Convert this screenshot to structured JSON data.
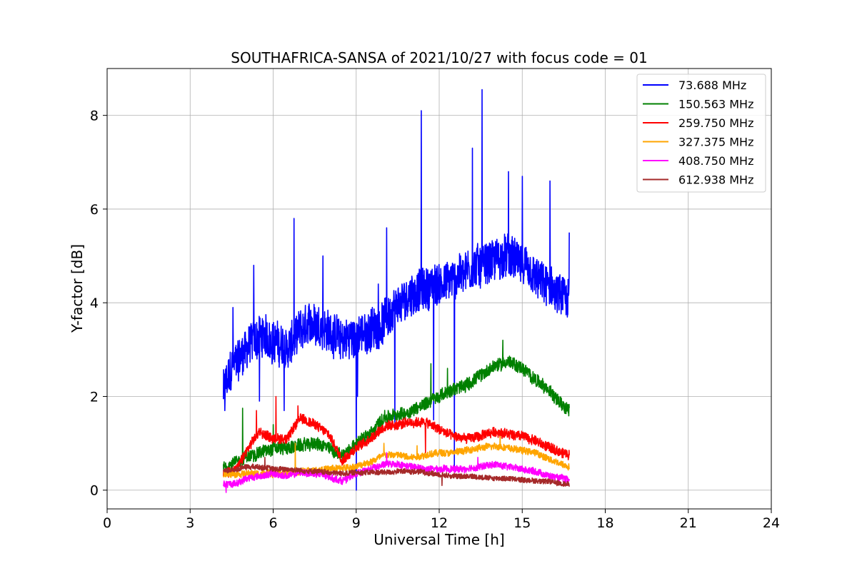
{
  "chart_data": {
    "type": "line",
    "title": "SOUTHAFRICA-SANSA of 2021/10/27 with focus code = 01",
    "xlabel": "Universal Time [h]",
    "ylabel": "Y-factor [dB]",
    "xlim": [
      0,
      24
    ],
    "ylim": [
      -0.4,
      9.0
    ],
    "xticks": [
      0,
      3,
      6,
      9,
      12,
      15,
      18,
      21,
      24
    ],
    "yticks": [
      0,
      2,
      4,
      6,
      8
    ],
    "grid": true,
    "legend_position": "top-right",
    "series": [
      {
        "name": " 73.688 MHz",
        "color": "#0000ff",
        "baseline": [
          [
            4.2,
            2.1
          ],
          [
            4.5,
            2.6
          ],
          [
            5.0,
            3.0
          ],
          [
            5.5,
            3.3
          ],
          [
            6.0,
            3.2
          ],
          [
            6.5,
            3.0
          ],
          [
            7.0,
            3.4
          ],
          [
            7.5,
            3.6
          ],
          [
            8.0,
            3.4
          ],
          [
            8.5,
            3.2
          ],
          [
            9.0,
            3.3
          ],
          [
            9.5,
            3.4
          ],
          [
            10.0,
            3.6
          ],
          [
            10.5,
            3.9
          ],
          [
            11.0,
            4.2
          ],
          [
            11.5,
            4.3
          ],
          [
            12.0,
            4.4
          ],
          [
            12.5,
            4.5
          ],
          [
            13.0,
            4.7
          ],
          [
            13.5,
            4.8
          ],
          [
            14.0,
            4.9
          ],
          [
            14.5,
            5.0
          ],
          [
            15.0,
            4.8
          ],
          [
            15.5,
            4.5
          ],
          [
            16.0,
            4.3
          ],
          [
            16.7,
            4.0
          ]
        ],
        "noise": 0.55,
        "spikes": [
          [
            4.25,
            1.7
          ],
          [
            4.55,
            3.9
          ],
          [
            5.3,
            4.8
          ],
          [
            5.5,
            1.9
          ],
          [
            6.4,
            1.7
          ],
          [
            6.75,
            5.8
          ],
          [
            7.8,
            5.0
          ],
          [
            9.0,
            0.0
          ],
          [
            9.05,
            2.0
          ],
          [
            9.8,
            4.4
          ],
          [
            10.1,
            5.6
          ],
          [
            10.4,
            1.4
          ],
          [
            11.35,
            8.1
          ],
          [
            11.8,
            1.5
          ],
          [
            12.55,
            0.4
          ],
          [
            13.2,
            7.3
          ],
          [
            13.55,
            8.55
          ],
          [
            14.5,
            6.8
          ],
          [
            15.0,
            6.7
          ],
          [
            16.0,
            6.6
          ],
          [
            16.7,
            5.5
          ]
        ]
      },
      {
        "name": "150.563 MHz",
        "color": "#008000",
        "baseline": [
          [
            4.2,
            0.5
          ],
          [
            4.5,
            0.55
          ],
          [
            5.0,
            0.7
          ],
          [
            5.5,
            0.8
          ],
          [
            6.0,
            0.9
          ],
          [
            6.5,
            0.9
          ],
          [
            7.0,
            0.95
          ],
          [
            7.5,
            1.0
          ],
          [
            8.0,
            0.9
          ],
          [
            8.5,
            0.75
          ],
          [
            9.0,
            1.0
          ],
          [
            9.5,
            1.2
          ],
          [
            10.0,
            1.55
          ],
          [
            10.5,
            1.6
          ],
          [
            11.0,
            1.7
          ],
          [
            11.5,
            1.85
          ],
          [
            12.0,
            2.0
          ],
          [
            12.5,
            2.15
          ],
          [
            13.0,
            2.25
          ],
          [
            13.5,
            2.45
          ],
          [
            14.0,
            2.65
          ],
          [
            14.5,
            2.75
          ],
          [
            15.0,
            2.6
          ],
          [
            15.5,
            2.35
          ],
          [
            16.0,
            2.1
          ],
          [
            16.7,
            1.7
          ]
        ],
        "noise": 0.17,
        "spikes": [
          [
            4.9,
            1.75
          ],
          [
            6.0,
            1.4
          ],
          [
            11.7,
            2.7
          ],
          [
            12.3,
            2.6
          ],
          [
            14.3,
            3.2
          ]
        ]
      },
      {
        "name": "259.750 MHz",
        "color": "#ff0000",
        "baseline": [
          [
            4.2,
            0.35
          ],
          [
            4.7,
            0.45
          ],
          [
            5.0,
            0.8
          ],
          [
            5.5,
            1.25
          ],
          [
            6.0,
            1.1
          ],
          [
            6.5,
            1.1
          ],
          [
            7.0,
            1.55
          ],
          [
            7.5,
            1.4
          ],
          [
            8.0,
            1.2
          ],
          [
            8.5,
            0.65
          ],
          [
            9.0,
            0.9
          ],
          [
            9.5,
            1.1
          ],
          [
            10.0,
            1.35
          ],
          [
            10.5,
            1.4
          ],
          [
            11.0,
            1.45
          ],
          [
            11.5,
            1.45
          ],
          [
            12.0,
            1.3
          ],
          [
            12.5,
            1.15
          ],
          [
            13.0,
            1.1
          ],
          [
            13.5,
            1.15
          ],
          [
            14.0,
            1.25
          ],
          [
            14.5,
            1.2
          ],
          [
            15.0,
            1.15
          ],
          [
            15.5,
            1.05
          ],
          [
            16.0,
            0.9
          ],
          [
            16.7,
            0.75
          ]
        ],
        "noise": 0.13,
        "spikes": [
          [
            5.4,
            1.7
          ],
          [
            6.1,
            2.0
          ],
          [
            6.9,
            1.8
          ],
          [
            11.5,
            0.8
          ]
        ]
      },
      {
        "name": "327.375 MHz",
        "color": "#ffa500",
        "baseline": [
          [
            4.2,
            0.35
          ],
          [
            5.0,
            0.35
          ],
          [
            6.0,
            0.35
          ],
          [
            7.0,
            0.4
          ],
          [
            8.0,
            0.45
          ],
          [
            9.0,
            0.5
          ],
          [
            9.5,
            0.6
          ],
          [
            10.0,
            0.75
          ],
          [
            10.5,
            0.75
          ],
          [
            11.0,
            0.7
          ],
          [
            11.5,
            0.75
          ],
          [
            12.0,
            0.8
          ],
          [
            12.5,
            0.8
          ],
          [
            13.0,
            0.85
          ],
          [
            13.5,
            0.9
          ],
          [
            14.0,
            0.95
          ],
          [
            14.5,
            0.9
          ],
          [
            15.0,
            0.85
          ],
          [
            15.5,
            0.8
          ],
          [
            16.0,
            0.65
          ],
          [
            16.7,
            0.5
          ]
        ],
        "noise": 0.09,
        "spikes": [
          [
            6.8,
            1.0
          ],
          [
            10.0,
            1.0
          ],
          [
            11.2,
            0.95
          ],
          [
            14.2,
            1.15
          ]
        ]
      },
      {
        "name": "408.750 MHz",
        "color": "#ff00ff",
        "baseline": [
          [
            4.2,
            0.12
          ],
          [
            4.7,
            0.15
          ],
          [
            5.0,
            0.25
          ],
          [
            5.5,
            0.3
          ],
          [
            6.0,
            0.35
          ],
          [
            6.5,
            0.3
          ],
          [
            7.0,
            0.38
          ],
          [
            7.5,
            0.35
          ],
          [
            8.0,
            0.28
          ],
          [
            8.5,
            0.2
          ],
          [
            9.0,
            0.35
          ],
          [
            9.5,
            0.45
          ],
          [
            10.0,
            0.55
          ],
          [
            10.5,
            0.55
          ],
          [
            11.0,
            0.5
          ],
          [
            11.5,
            0.45
          ],
          [
            12.0,
            0.45
          ],
          [
            12.5,
            0.45
          ],
          [
            13.0,
            0.45
          ],
          [
            13.5,
            0.5
          ],
          [
            14.0,
            0.55
          ],
          [
            14.5,
            0.5
          ],
          [
            15.0,
            0.45
          ],
          [
            15.5,
            0.4
          ],
          [
            16.0,
            0.3
          ],
          [
            16.7,
            0.22
          ]
        ],
        "noise": 0.09,
        "spikes": [
          [
            4.3,
            -0.05
          ],
          [
            10.1,
            0.8
          ],
          [
            13.4,
            0.7
          ]
        ]
      },
      {
        "name": "612.938 MHz",
        "color": "#a52a2a",
        "baseline": [
          [
            4.2,
            0.4
          ],
          [
            4.7,
            0.45
          ],
          [
            5.0,
            0.5
          ],
          [
            5.5,
            0.5
          ],
          [
            6.0,
            0.45
          ],
          [
            6.5,
            0.45
          ],
          [
            7.0,
            0.42
          ],
          [
            7.5,
            0.4
          ],
          [
            8.0,
            0.38
          ],
          [
            8.5,
            0.35
          ],
          [
            9.0,
            0.38
          ],
          [
            9.5,
            0.38
          ],
          [
            10.0,
            0.38
          ],
          [
            10.5,
            0.4
          ],
          [
            11.0,
            0.4
          ],
          [
            11.5,
            0.38
          ],
          [
            12.0,
            0.33
          ],
          [
            12.5,
            0.3
          ],
          [
            13.0,
            0.3
          ],
          [
            13.5,
            0.28
          ],
          [
            14.0,
            0.25
          ],
          [
            14.5,
            0.25
          ],
          [
            15.0,
            0.22
          ],
          [
            15.5,
            0.2
          ],
          [
            16.0,
            0.18
          ],
          [
            16.7,
            0.12
          ]
        ],
        "noise": 0.07,
        "spikes": [
          [
            5.7,
            0.7
          ],
          [
            12.1,
            0.1
          ]
        ]
      }
    ]
  }
}
